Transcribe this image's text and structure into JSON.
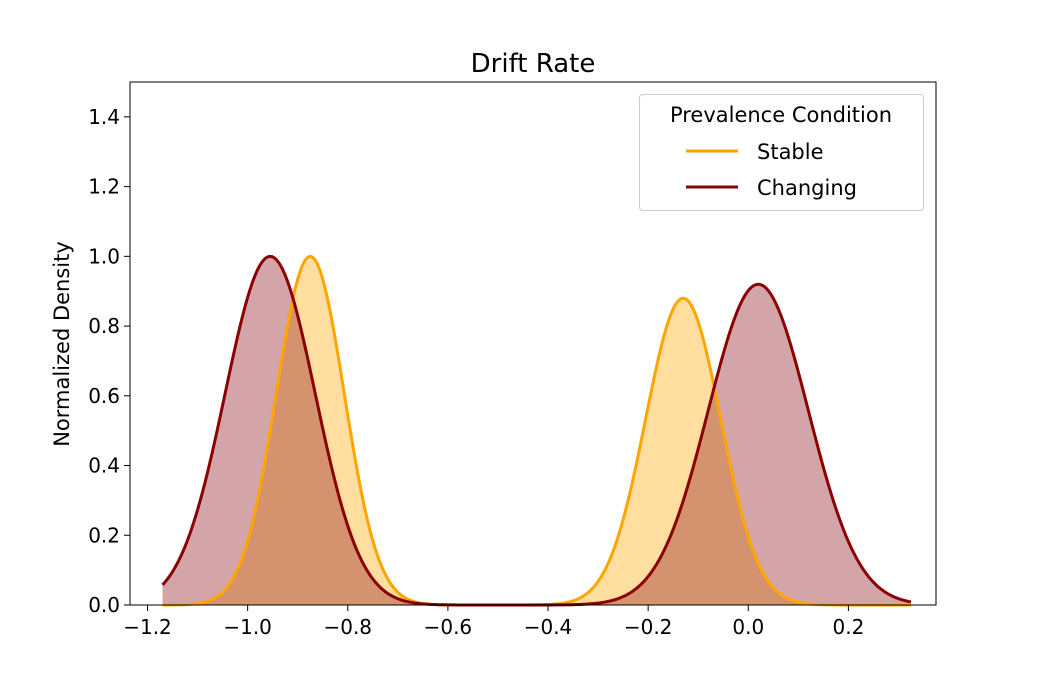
{
  "chart_data": {
    "type": "area",
    "title": "Drift Rate",
    "xlabel": "",
    "ylabel": "Normalized Density",
    "xlim": [
      -1.235,
      0.375
    ],
    "ylim": [
      0.0,
      1.5
    ],
    "x_range": [
      -1.17,
      0.325
    ],
    "xticks": [
      -1.2,
      -1.0,
      -0.8,
      -0.6,
      -0.4,
      -0.2,
      0.0,
      0.2
    ],
    "xtick_labels": [
      "−1.2",
      "−1.0",
      "−0.8",
      "−0.6",
      "−0.4",
      "−0.2",
      "0.0",
      "0.2"
    ],
    "yticks": [
      0.0,
      0.2,
      0.4,
      0.6,
      0.8,
      1.0,
      1.2,
      1.4
    ],
    "ytick_labels": [
      "0.0",
      "0.2",
      "0.4",
      "0.6",
      "0.8",
      "1.0",
      "1.2",
      "1.4"
    ],
    "grid": false,
    "legend": {
      "title": "Prevalence Condition",
      "placement": "top-right"
    },
    "series": [
      {
        "name": "Stable",
        "color": "#FFA500",
        "fill_color": "#FFDEA0",
        "components": [
          {
            "mean": -0.875,
            "sd": 0.068,
            "amplitude": 1.0
          },
          {
            "mean": -0.13,
            "sd": 0.075,
            "amplitude": 0.88
          }
        ]
      },
      {
        "name": "Changing",
        "color": "#8B0000",
        "fill_color": "#D4A5A8",
        "components": [
          {
            "mean": -0.955,
            "sd": 0.09,
            "amplitude": 1.0
          },
          {
            "mean": 0.02,
            "sd": 0.1,
            "amplitude": 0.92
          }
        ]
      }
    ]
  }
}
